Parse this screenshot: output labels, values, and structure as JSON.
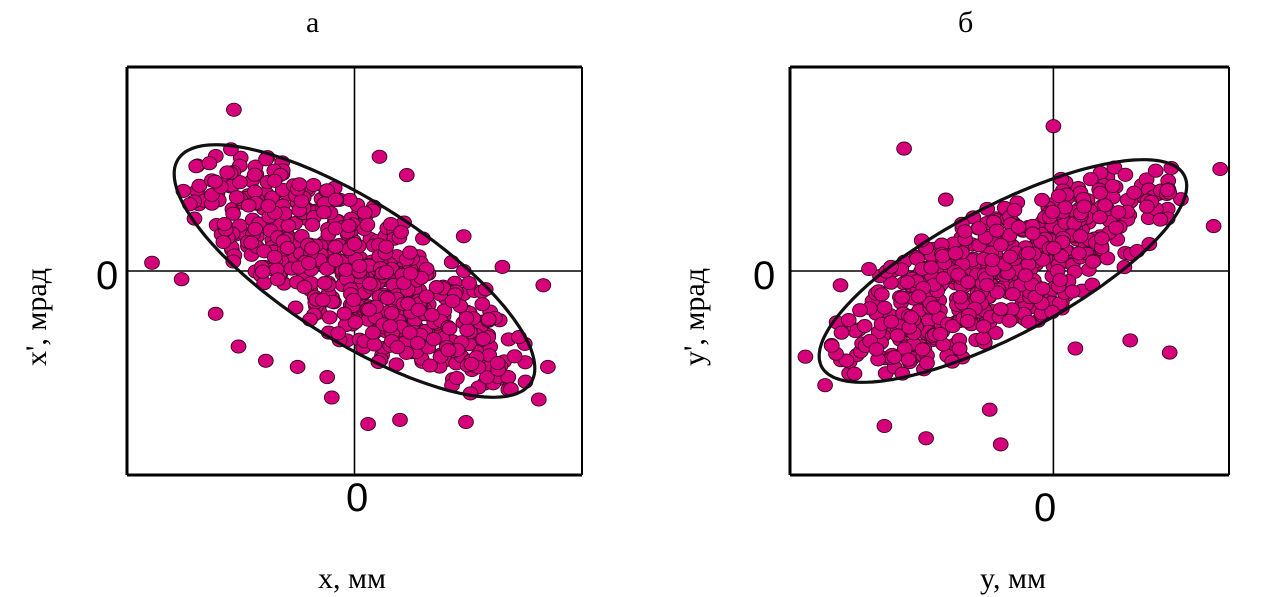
{
  "chart_data": [
    {
      "type": "scatter",
      "panel_label": "а",
      "xlabel": "x, мм",
      "ylabel": "x', мрад",
      "x_zero_label": "0",
      "y_zero_label": "0",
      "xlim": [
        -1.0,
        1.0
      ],
      "ylim": [
        -1.0,
        1.0
      ],
      "grid": false,
      "point_color": "#d6007a",
      "ellipse_color": "#111111",
      "ellipse": {
        "center": [
          0.0,
          0.0
        ],
        "semi_major": 0.95,
        "semi_minor": 0.33,
        "angle_deg": -36
      },
      "distribution": {
        "count": 560,
        "spread_major": 0.55,
        "spread_minor": 0.19,
        "seed": 11
      },
      "outliers": [
        [
          -0.53,
          0.79
        ],
        [
          0.11,
          0.56
        ],
        [
          0.23,
          0.47
        ],
        [
          0.48,
          0.17
        ],
        [
          0.65,
          0.02
        ],
        [
          0.83,
          -0.07
        ],
        [
          -0.89,
          0.04
        ],
        [
          -0.76,
          -0.04
        ],
        [
          -0.61,
          -0.21
        ],
        [
          -0.51,
          -0.37
        ],
        [
          -0.39,
          -0.44
        ],
        [
          -0.25,
          -0.47
        ],
        [
          -0.12,
          -0.52
        ],
        [
          -0.1,
          -0.62
        ],
        [
          0.06,
          -0.75
        ],
        [
          0.2,
          -0.73
        ],
        [
          0.49,
          -0.74
        ],
        [
          0.81,
          -0.63
        ],
        [
          0.85,
          -0.47
        ]
      ]
    },
    {
      "type": "scatter",
      "panel_label": "б",
      "xlabel": "y, мм",
      "ylabel": "y', мрад",
      "x_zero_label": "0",
      "y_zero_label": "0",
      "xlim": [
        -1.2,
        0.8
      ],
      "ylim": [
        -1.0,
        1.0
      ],
      "grid": false,
      "point_color": "#d6007a",
      "ellipse_color": "#111111",
      "ellipse": {
        "center": [
          -0.23,
          0.0
        ],
        "semi_major": 0.95,
        "semi_minor": 0.31,
        "angle_deg": 30
      },
      "distribution": {
        "count": 560,
        "spread_major": 0.55,
        "spread_minor": 0.18,
        "seed": 29
      },
      "outliers": [
        [
          -0.68,
          0.6
        ],
        [
          -0.49,
          0.35
        ],
        [
          -0.6,
          0.15
        ],
        [
          -0.74,
          0.02
        ],
        [
          -0.84,
          0.01
        ],
        [
          -0.97,
          -0.07
        ],
        [
          -1.13,
          -0.42
        ],
        [
          -1.04,
          -0.56
        ],
        [
          -0.58,
          -0.82
        ],
        [
          -0.77,
          -0.76
        ],
        [
          -0.29,
          -0.68
        ],
        [
          -0.24,
          -0.85
        ],
        [
          0.0,
          0.71
        ],
        [
          0.1,
          -0.38
        ],
        [
          0.35,
          -0.34
        ],
        [
          0.53,
          -0.4
        ],
        [
          0.76,
          0.5
        ],
        [
          0.73,
          0.22
        ]
      ]
    }
  ]
}
